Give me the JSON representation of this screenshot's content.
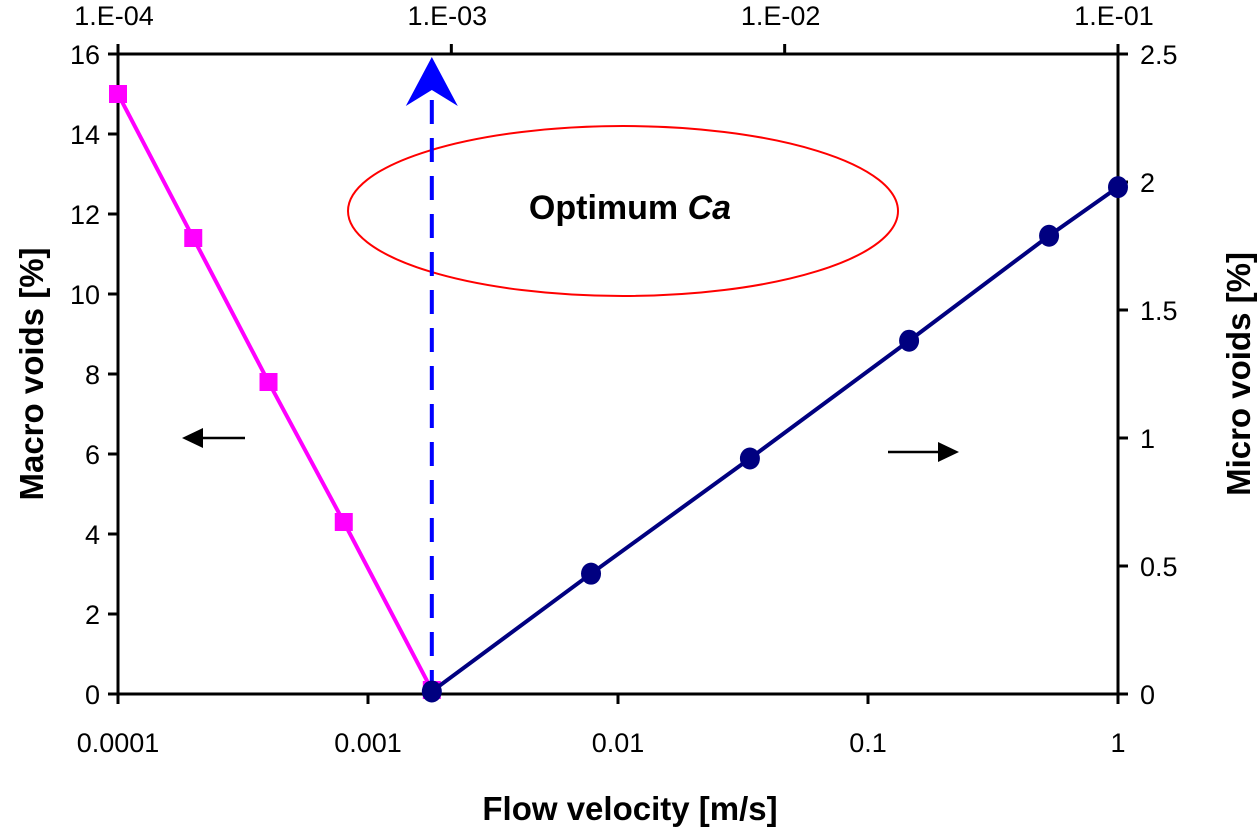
{
  "chart_data": {
    "type": "line",
    "title": "",
    "xlabel": "Flow velocity  [m/s]",
    "x2label": "",
    "ylabel": "Macro voids  [%]",
    "y2label": "Micro voids  [%]",
    "xscale": "log",
    "xlim": [
      0.0001,
      1
    ],
    "ylim": [
      0,
      16
    ],
    "y2lim": [
      0,
      2.5
    ],
    "x2lim": [
      0.0001,
      0.1
    ],
    "x_ticks": [
      "0.0001",
      "0.001",
      "0.01",
      "0.1",
      "1"
    ],
    "x_tick_values": [
      0.0001,
      0.001,
      0.01,
      0.1,
      1
    ],
    "x2_ticks": [
      "1.E-04",
      "1.E-03",
      "1.E-02",
      "1.E-01"
    ],
    "x2_tick_values": [
      0.0001,
      0.001,
      0.01,
      0.1
    ],
    "y_ticks": [
      "0",
      "2",
      "4",
      "6",
      "8",
      "10",
      "12",
      "14",
      "16"
    ],
    "y_tick_values": [
      0,
      2,
      4,
      6,
      8,
      10,
      12,
      14,
      16
    ],
    "y2_ticks": [
      "0",
      "0.5",
      "1",
      "1.5",
      "2",
      "2.5"
    ],
    "y2_tick_values": [
      0,
      0.5,
      1,
      1.5,
      2,
      2.5
    ],
    "grid": false,
    "series": [
      {
        "name": "Macro voids",
        "axis": "left",
        "color": "#ff00ff",
        "marker": "square",
        "x": [
          0.0001,
          0.0002,
          0.0004,
          0.0008,
          0.0018
        ],
        "y": [
          15,
          11.4,
          7.8,
          4.3,
          0.1
        ]
      },
      {
        "name": "Micro voids",
        "axis": "right",
        "color": "#000080",
        "marker": "circle",
        "x": [
          0.0018,
          0.0078,
          0.0337,
          0.146,
          0.53,
          1.0
        ],
        "y": [
          0.01,
          0.47,
          0.92,
          1.38,
          1.79,
          1.98
        ]
      }
    ],
    "annotations": {
      "optimum_label_prefix": "Optimum ",
      "optimum_label_italic": "Ca",
      "optimum_x": 0.0018,
      "optimum_line_color": "#0000ff",
      "ellipse_color": "#ff0000"
    }
  }
}
